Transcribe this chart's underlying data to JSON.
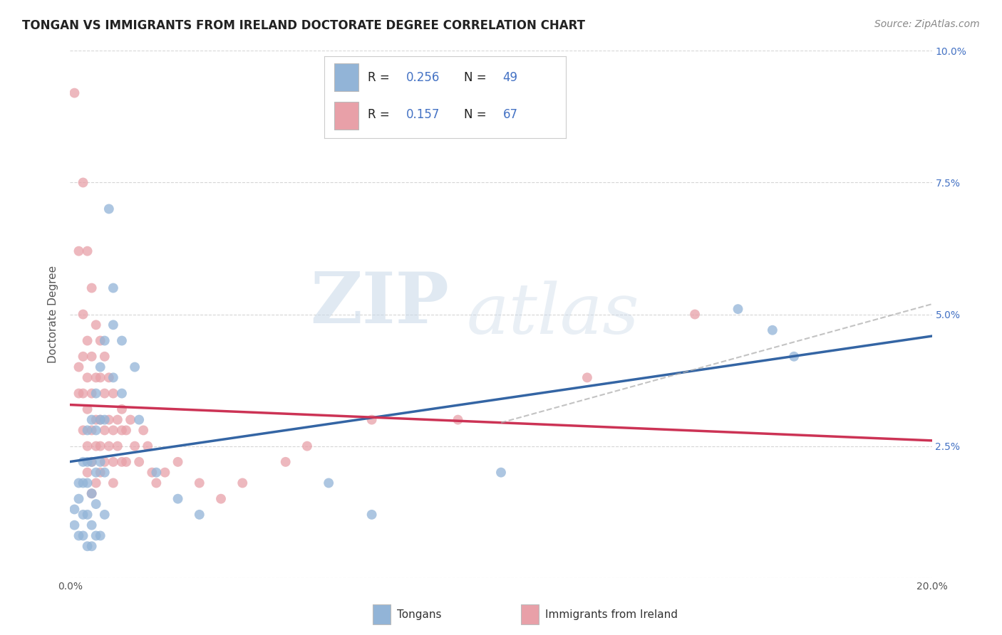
{
  "title": "TONGAN VS IMMIGRANTS FROM IRELAND DOCTORATE DEGREE CORRELATION CHART",
  "source": "Source: ZipAtlas.com",
  "ylabel": "Doctorate Degree",
  "xmin": 0.0,
  "xmax": 0.2,
  "ymin": 0.0,
  "ymax": 0.1,
  "xticks": [
    0.0,
    0.025,
    0.05,
    0.075,
    0.1,
    0.125,
    0.15,
    0.175,
    0.2
  ],
  "yticks": [
    0.0,
    0.025,
    0.05,
    0.075,
    0.1
  ],
  "blue_color": "#92b4d7",
  "pink_color": "#e8a0a8",
  "blue_line_color": "#3465a4",
  "pink_line_color": "#cc3355",
  "blue_R": 0.256,
  "blue_N": 49,
  "pink_R": 0.157,
  "pink_N": 67,
  "legend_label_blue": "Tongans",
  "legend_label_pink": "Immigrants from Ireland",
  "watermark_zip": "ZIP",
  "watermark_atlas": "atlas",
  "background_color": "#ffffff",
  "grid_color": "#cccccc",
  "title_fontsize": 12,
  "axis_label_fontsize": 11,
  "tick_fontsize": 10,
  "legend_fontsize": 12,
  "source_fontsize": 10,
  "right_ytick_color": "#4472c4",
  "blue_scatter": [
    [
      0.001,
      0.013
    ],
    [
      0.001,
      0.01
    ],
    [
      0.002,
      0.018
    ],
    [
      0.002,
      0.015
    ],
    [
      0.002,
      0.008
    ],
    [
      0.003,
      0.022
    ],
    [
      0.003,
      0.018
    ],
    [
      0.003,
      0.012
    ],
    [
      0.003,
      0.008
    ],
    [
      0.004,
      0.028
    ],
    [
      0.004,
      0.022
    ],
    [
      0.004,
      0.018
    ],
    [
      0.004,
      0.012
    ],
    [
      0.004,
      0.006
    ],
    [
      0.005,
      0.03
    ],
    [
      0.005,
      0.022
    ],
    [
      0.005,
      0.016
    ],
    [
      0.005,
      0.01
    ],
    [
      0.005,
      0.006
    ],
    [
      0.006,
      0.035
    ],
    [
      0.006,
      0.028
    ],
    [
      0.006,
      0.02
    ],
    [
      0.006,
      0.014
    ],
    [
      0.006,
      0.008
    ],
    [
      0.007,
      0.04
    ],
    [
      0.007,
      0.03
    ],
    [
      0.007,
      0.022
    ],
    [
      0.007,
      0.008
    ],
    [
      0.008,
      0.045
    ],
    [
      0.008,
      0.03
    ],
    [
      0.008,
      0.02
    ],
    [
      0.008,
      0.012
    ],
    [
      0.009,
      0.07
    ],
    [
      0.01,
      0.055
    ],
    [
      0.01,
      0.048
    ],
    [
      0.01,
      0.038
    ],
    [
      0.012,
      0.045
    ],
    [
      0.012,
      0.035
    ],
    [
      0.015,
      0.04
    ],
    [
      0.016,
      0.03
    ],
    [
      0.02,
      0.02
    ],
    [
      0.025,
      0.015
    ],
    [
      0.03,
      0.012
    ],
    [
      0.06,
      0.018
    ],
    [
      0.07,
      0.012
    ],
    [
      0.1,
      0.02
    ],
    [
      0.155,
      0.051
    ],
    [
      0.163,
      0.047
    ],
    [
      0.168,
      0.042
    ]
  ],
  "pink_scatter": [
    [
      0.001,
      0.092
    ],
    [
      0.002,
      0.062
    ],
    [
      0.002,
      0.04
    ],
    [
      0.002,
      0.035
    ],
    [
      0.003,
      0.075
    ],
    [
      0.003,
      0.05
    ],
    [
      0.003,
      0.042
    ],
    [
      0.003,
      0.035
    ],
    [
      0.003,
      0.028
    ],
    [
      0.004,
      0.062
    ],
    [
      0.004,
      0.045
    ],
    [
      0.004,
      0.038
    ],
    [
      0.004,
      0.032
    ],
    [
      0.004,
      0.025
    ],
    [
      0.004,
      0.02
    ],
    [
      0.005,
      0.055
    ],
    [
      0.005,
      0.042
    ],
    [
      0.005,
      0.035
    ],
    [
      0.005,
      0.028
    ],
    [
      0.005,
      0.022
    ],
    [
      0.005,
      0.016
    ],
    [
      0.006,
      0.048
    ],
    [
      0.006,
      0.038
    ],
    [
      0.006,
      0.03
    ],
    [
      0.006,
      0.025
    ],
    [
      0.006,
      0.018
    ],
    [
      0.007,
      0.045
    ],
    [
      0.007,
      0.038
    ],
    [
      0.007,
      0.03
    ],
    [
      0.007,
      0.025
    ],
    [
      0.007,
      0.02
    ],
    [
      0.008,
      0.042
    ],
    [
      0.008,
      0.035
    ],
    [
      0.008,
      0.028
    ],
    [
      0.008,
      0.022
    ],
    [
      0.009,
      0.038
    ],
    [
      0.009,
      0.03
    ],
    [
      0.009,
      0.025
    ],
    [
      0.01,
      0.035
    ],
    [
      0.01,
      0.028
    ],
    [
      0.01,
      0.022
    ],
    [
      0.01,
      0.018
    ],
    [
      0.011,
      0.03
    ],
    [
      0.011,
      0.025
    ],
    [
      0.012,
      0.032
    ],
    [
      0.012,
      0.028
    ],
    [
      0.012,
      0.022
    ],
    [
      0.013,
      0.028
    ],
    [
      0.013,
      0.022
    ],
    [
      0.014,
      0.03
    ],
    [
      0.015,
      0.025
    ],
    [
      0.016,
      0.022
    ],
    [
      0.017,
      0.028
    ],
    [
      0.018,
      0.025
    ],
    [
      0.019,
      0.02
    ],
    [
      0.02,
      0.018
    ],
    [
      0.022,
      0.02
    ],
    [
      0.025,
      0.022
    ],
    [
      0.03,
      0.018
    ],
    [
      0.035,
      0.015
    ],
    [
      0.04,
      0.018
    ],
    [
      0.05,
      0.022
    ],
    [
      0.055,
      0.025
    ],
    [
      0.07,
      0.03
    ],
    [
      0.09,
      0.03
    ],
    [
      0.12,
      0.038
    ],
    [
      0.145,
      0.05
    ]
  ]
}
